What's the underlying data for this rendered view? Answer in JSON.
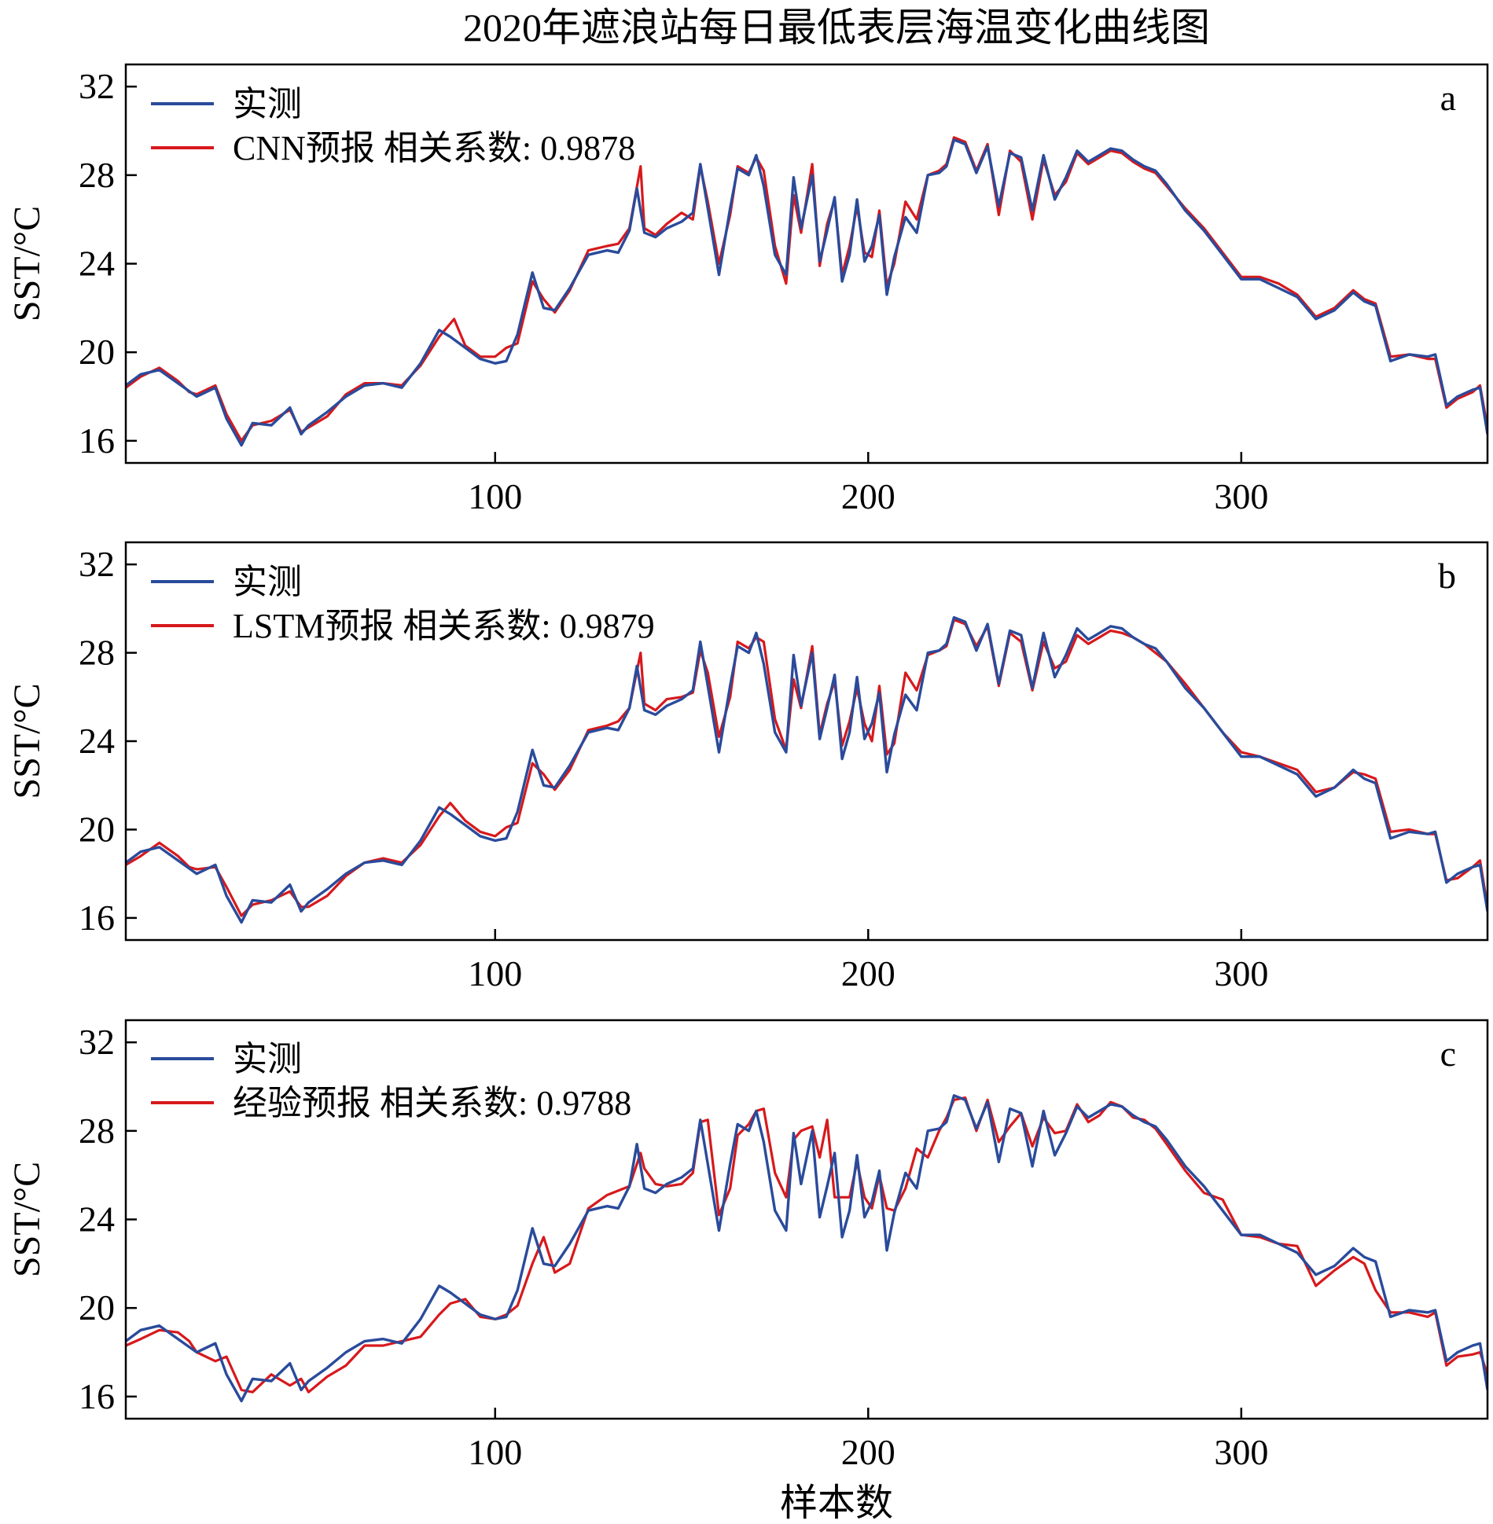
{
  "chart_data": {
    "type": "line",
    "title": "2020年遮浪站每日最低表层海温变化曲线图",
    "xlabel": "样本数",
    "ylabel": "SST/°C",
    "xlim": [
      1,
      366
    ],
    "ylim": [
      15,
      33
    ],
    "xticks": [
      100,
      200,
      300
    ],
    "yticks": [
      16,
      20,
      24,
      28,
      32
    ],
    "grid": false,
    "legend_position": "top-left",
    "colors": {
      "observed": "#2a4b9b",
      "forecast": "#d7191c"
    },
    "observed": {
      "name": "实测",
      "x": [
        1,
        5,
        10,
        15,
        20,
        25,
        28,
        32,
        35,
        40,
        45,
        48,
        50,
        55,
        60,
        65,
        70,
        75,
        80,
        85,
        88,
        92,
        96,
        100,
        103,
        106,
        110,
        113,
        116,
        120,
        125,
        130,
        133,
        136,
        138,
        140,
        143,
        146,
        150,
        153,
        155,
        157,
        160,
        163,
        165,
        168,
        170,
        172,
        175,
        178,
        180,
        182,
        185,
        187,
        189,
        191,
        193,
        195,
        197,
        199,
        201,
        203,
        205,
        207,
        210,
        213,
        216,
        219,
        221,
        223,
        226,
        229,
        232,
        235,
        238,
        241,
        244,
        247,
        250,
        253,
        256,
        259,
        262,
        265,
        268,
        271,
        274,
        277,
        280,
        285,
        290,
        295,
        300,
        305,
        310,
        315,
        320,
        325,
        330,
        333,
        336,
        340,
        345,
        350,
        352,
        355,
        358,
        362,
        364,
        366
      ],
      "y": [
        18.5,
        19.0,
        19.2,
        18.6,
        18.0,
        18.4,
        17.0,
        15.8,
        16.8,
        16.7,
        17.5,
        16.3,
        16.7,
        17.3,
        18.0,
        18.5,
        18.6,
        18.4,
        19.5,
        21.0,
        20.7,
        20.2,
        19.7,
        19.5,
        19.6,
        20.8,
        23.6,
        22.0,
        21.9,
        22.9,
        24.4,
        24.6,
        24.5,
        25.5,
        27.4,
        25.4,
        25.2,
        25.6,
        25.9,
        26.3,
        28.5,
        26.5,
        23.5,
        26.5,
        28.3,
        28.0,
        28.9,
        27.5,
        24.4,
        23.5,
        27.9,
        25.6,
        28.0,
        24.1,
        25.5,
        27.0,
        23.2,
        24.4,
        26.9,
        24.1,
        24.8,
        26.2,
        22.6,
        24.3,
        26.1,
        25.4,
        28.0,
        28.1,
        28.4,
        29.6,
        29.4,
        28.1,
        29.3,
        26.6,
        29.0,
        28.8,
        26.4,
        28.9,
        26.9,
        27.9,
        29.1,
        28.6,
        28.9,
        29.2,
        29.1,
        28.7,
        28.4,
        28.2,
        27.6,
        26.4,
        25.5,
        24.4,
        23.3,
        23.3,
        22.9,
        22.5,
        21.5,
        21.9,
        22.7,
        22.3,
        22.1,
        19.6,
        19.9,
        19.8,
        19.9,
        17.6,
        18.0,
        18.3,
        18.4,
        16.3
      ]
    },
    "panels": [
      {
        "letter": "a",
        "forecast": {
          "name": "CNN预报 相关系数: 0.9878",
          "x": [
            1,
            5,
            10,
            15,
            18,
            20,
            25,
            28,
            32,
            35,
            40,
            45,
            48,
            50,
            55,
            60,
            65,
            70,
            75,
            80,
            85,
            89,
            92,
            96,
            100,
            103,
            106,
            110,
            113,
            116,
            120,
            125,
            130,
            133,
            136,
            139,
            140,
            143,
            146,
            150,
            153,
            155,
            157,
            160,
            163,
            165,
            168,
            170,
            172,
            175,
            178,
            180,
            182,
            185,
            187,
            189,
            191,
            193,
            195,
            197,
            199,
            201,
            203,
            205,
            207,
            210,
            213,
            216,
            219,
            221,
            223,
            226,
            229,
            232,
            235,
            238,
            241,
            244,
            247,
            250,
            253,
            256,
            259,
            262,
            265,
            268,
            271,
            274,
            277,
            280,
            285,
            290,
            295,
            300,
            305,
            310,
            315,
            320,
            325,
            330,
            333,
            336,
            340,
            345,
            350,
            352,
            355,
            358,
            362,
            364,
            366
          ],
          "y": [
            18.4,
            18.9,
            19.3,
            18.7,
            18.2,
            18.1,
            18.5,
            17.2,
            16.0,
            16.7,
            16.9,
            17.4,
            16.4,
            16.6,
            17.1,
            18.1,
            18.6,
            18.6,
            18.5,
            19.4,
            20.7,
            21.5,
            20.3,
            19.8,
            19.8,
            20.2,
            20.4,
            23.2,
            22.4,
            21.8,
            22.8,
            24.6,
            24.8,
            24.9,
            25.6,
            28.4,
            25.6,
            25.3,
            25.8,
            26.3,
            26.0,
            28.4,
            26.8,
            24.0,
            26.2,
            28.4,
            28.1,
            28.8,
            28.2,
            24.8,
            23.1,
            27.1,
            25.4,
            28.5,
            23.9,
            25.8,
            26.9,
            23.5,
            24.8,
            26.6,
            24.5,
            24.3,
            26.4,
            23.0,
            24.0,
            26.8,
            26.0,
            28.0,
            28.2,
            28.5,
            29.7,
            29.5,
            28.2,
            29.4,
            26.2,
            29.1,
            28.6,
            26.0,
            28.7,
            27.1,
            27.7,
            29.0,
            28.5,
            28.8,
            29.1,
            29.0,
            28.6,
            28.3,
            28.1,
            27.5,
            26.5,
            25.6,
            24.5,
            23.4,
            23.4,
            23.1,
            22.6,
            21.6,
            22.0,
            22.8,
            22.4,
            22.2,
            19.8,
            19.9,
            19.7,
            19.7,
            17.5,
            17.9,
            18.2,
            18.5,
            16.6
          ]
        }
      },
      {
        "letter": "b",
        "forecast": {
          "name": "LSTM预报 相关系数: 0.9879",
          "x": [
            1,
            5,
            10,
            15,
            18,
            20,
            25,
            28,
            32,
            35,
            40,
            45,
            48,
            50,
            55,
            60,
            65,
            70,
            75,
            80,
            85,
            88,
            92,
            96,
            100,
            103,
            106,
            110,
            113,
            116,
            120,
            125,
            130,
            133,
            136,
            139,
            140,
            143,
            146,
            150,
            153,
            155,
            157,
            160,
            163,
            165,
            168,
            170,
            172,
            175,
            178,
            180,
            182,
            185,
            187,
            189,
            191,
            193,
            195,
            197,
            199,
            201,
            203,
            205,
            207,
            210,
            213,
            216,
            219,
            221,
            223,
            226,
            229,
            232,
            235,
            238,
            241,
            244,
            247,
            250,
            253,
            256,
            259,
            262,
            265,
            268,
            271,
            274,
            277,
            280,
            285,
            290,
            295,
            300,
            305,
            310,
            315,
            320,
            325,
            330,
            333,
            336,
            340,
            345,
            350,
            352,
            355,
            358,
            362,
            364,
            366
          ],
          "y": [
            18.4,
            18.8,
            19.4,
            18.8,
            18.3,
            18.2,
            18.3,
            17.4,
            16.1,
            16.6,
            16.8,
            17.2,
            16.5,
            16.5,
            17.0,
            17.9,
            18.5,
            18.7,
            18.5,
            19.3,
            20.6,
            21.2,
            20.4,
            19.9,
            19.7,
            20.1,
            20.3,
            23.0,
            22.5,
            21.8,
            22.7,
            24.5,
            24.7,
            24.9,
            25.5,
            28.0,
            25.7,
            25.4,
            25.9,
            26.0,
            26.2,
            28.1,
            27.1,
            24.2,
            26.0,
            28.5,
            28.2,
            28.7,
            28.5,
            25.0,
            23.6,
            26.8,
            25.5,
            28.3,
            24.3,
            25.7,
            26.7,
            23.8,
            24.9,
            26.4,
            24.8,
            24.0,
            26.5,
            23.4,
            23.9,
            27.1,
            26.3,
            27.9,
            28.1,
            28.3,
            29.5,
            29.3,
            28.3,
            29.2,
            26.5,
            28.9,
            28.5,
            26.3,
            28.5,
            27.3,
            27.6,
            28.8,
            28.4,
            28.7,
            29.0,
            28.9,
            28.7,
            28.4,
            28.0,
            27.6,
            26.6,
            25.5,
            24.4,
            23.5,
            23.3,
            23.0,
            22.7,
            21.7,
            21.9,
            22.6,
            22.5,
            22.3,
            19.9,
            20.0,
            19.8,
            19.8,
            17.7,
            17.8,
            18.3,
            18.6,
            16.5
          ]
        }
      },
      {
        "letter": "c",
        "forecast": {
          "name": "经验预报 相关系数: 0.9788",
          "x": [
            1,
            5,
            10,
            15,
            18,
            20,
            25,
            28,
            32,
            35,
            40,
            45,
            48,
            50,
            55,
            60,
            65,
            70,
            75,
            80,
            85,
            88,
            92,
            96,
            100,
            103,
            106,
            110,
            113,
            116,
            120,
            125,
            130,
            133,
            136,
            139,
            140,
            143,
            146,
            150,
            153,
            155,
            157,
            160,
            163,
            165,
            168,
            170,
            172,
            175,
            178,
            180,
            182,
            185,
            187,
            189,
            191,
            193,
            195,
            197,
            199,
            201,
            203,
            205,
            207,
            210,
            213,
            216,
            219,
            221,
            223,
            226,
            229,
            232,
            235,
            238,
            241,
            244,
            247,
            250,
            253,
            256,
            259,
            262,
            265,
            268,
            271,
            274,
            277,
            280,
            285,
            290,
            295,
            300,
            305,
            310,
            315,
            320,
            325,
            330,
            333,
            336,
            340,
            345,
            350,
            352,
            355,
            358,
            362,
            364,
            366
          ],
          "y": [
            18.3,
            18.6,
            19.0,
            18.9,
            18.5,
            18.0,
            17.6,
            17.8,
            16.3,
            16.2,
            17.0,
            16.5,
            16.8,
            16.2,
            16.9,
            17.4,
            18.3,
            18.3,
            18.5,
            18.7,
            19.7,
            20.2,
            20.4,
            19.6,
            19.5,
            19.7,
            20.1,
            22.0,
            23.2,
            21.6,
            22.0,
            24.5,
            25.1,
            25.3,
            25.5,
            27.0,
            26.3,
            25.6,
            25.5,
            25.6,
            26.1,
            28.4,
            28.5,
            24.2,
            25.4,
            27.8,
            28.3,
            28.9,
            29.0,
            26.1,
            25.0,
            27.6,
            28.0,
            28.2,
            26.8,
            28.5,
            25.0,
            25.0,
            25.0,
            26.6,
            25.0,
            24.5,
            26.0,
            24.5,
            24.4,
            25.4,
            27.2,
            26.8,
            28.0,
            28.6,
            29.4,
            29.5,
            28.0,
            29.4,
            27.5,
            28.2,
            28.8,
            27.3,
            28.6,
            27.9,
            28.0,
            29.2,
            28.4,
            28.7,
            29.3,
            29.1,
            28.6,
            28.5,
            28.1,
            27.4,
            26.2,
            25.2,
            24.9,
            23.3,
            23.2,
            22.9,
            22.8,
            21.0,
            21.7,
            22.3,
            22.0,
            20.8,
            19.8,
            19.8,
            19.6,
            19.8,
            17.4,
            17.8,
            17.9,
            18.0,
            17.0
          ]
        }
      }
    ]
  }
}
